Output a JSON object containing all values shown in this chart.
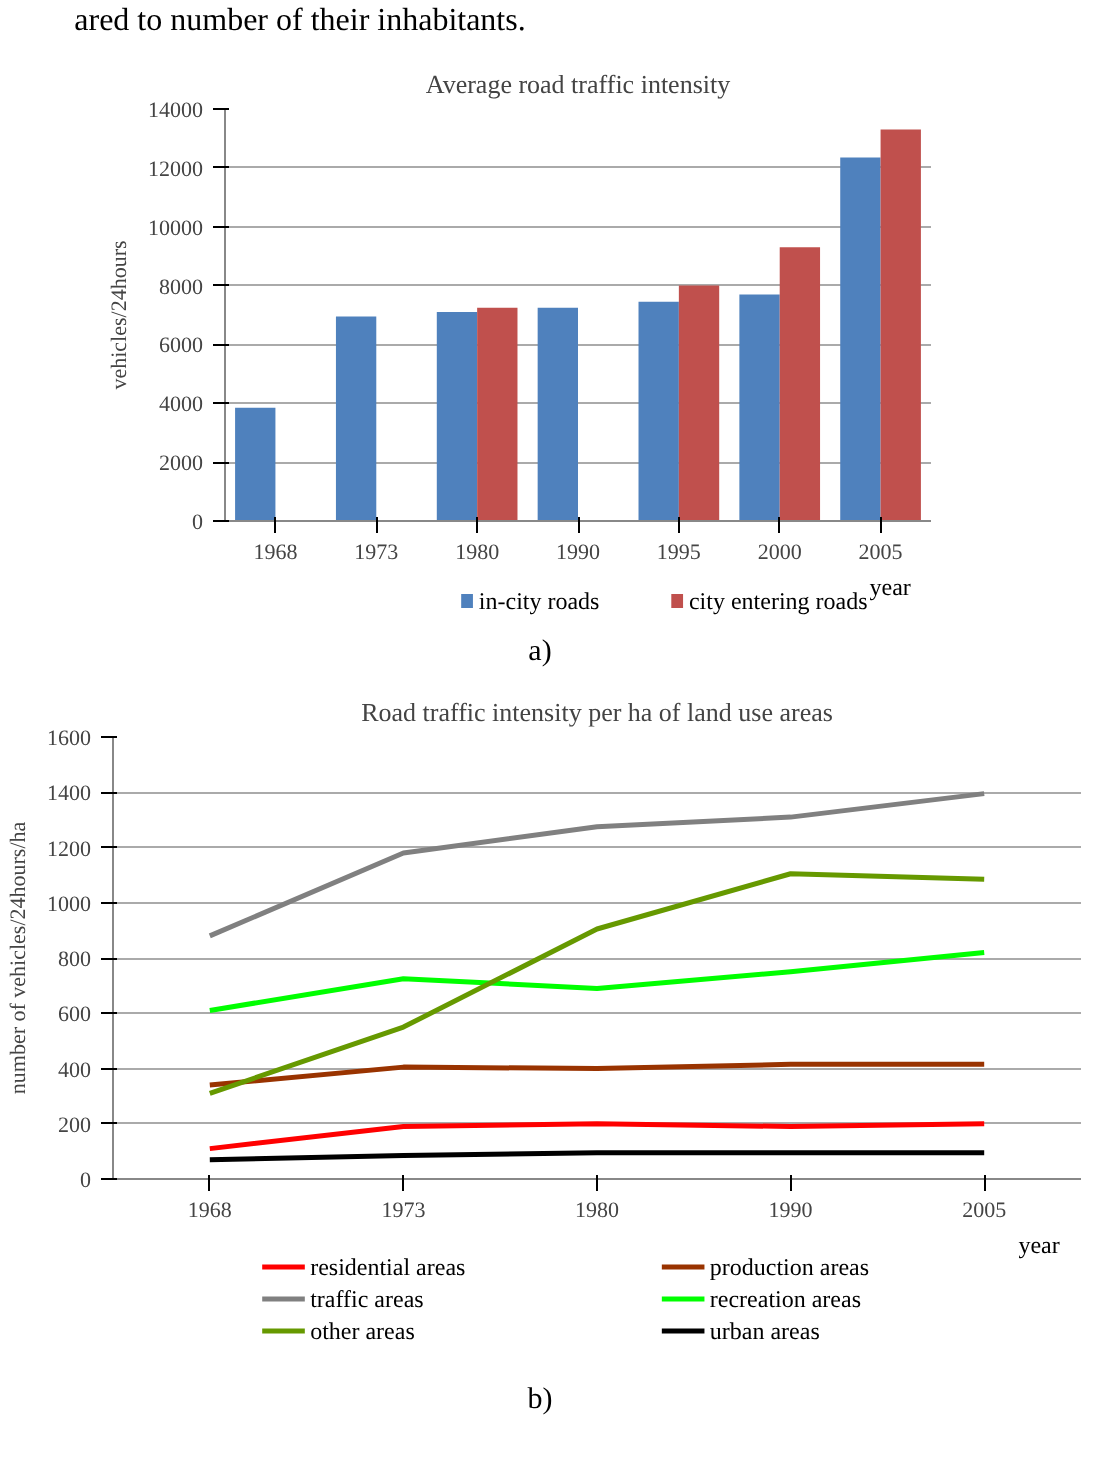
{
  "chart_data": [
    {
      "type": "bar",
      "title": "Average road traffic intensity",
      "xlabel": "year",
      "ylabel": "vehicles/24hours",
      "categories": [
        "1968",
        "1973",
        "1980",
        "1990",
        "1995",
        "2000",
        "2005"
      ],
      "series": [
        {
          "name": "in-city roads",
          "color": "#4f81bd",
          "values": [
            3850,
            6950,
            7100,
            7250,
            7450,
            7700,
            12350
          ]
        },
        {
          "name": "city entering roads",
          "color": "#c0504d",
          "values": [
            null,
            null,
            7250,
            null,
            8000,
            9300,
            13300
          ]
        }
      ],
      "ylim": [
        0,
        14000
      ],
      "yticks": [
        0,
        2000,
        4000,
        6000,
        8000,
        10000,
        12000,
        14000
      ],
      "grid": "y",
      "legend": "bottom",
      "annotations": [
        "ared to number of their inhabitants.",
        "a)"
      ]
    },
    {
      "type": "line",
      "title": "Road traffic intensity per ha of land use areas",
      "xlabel": "year",
      "ylabel": "number of vehicles/24hours/ha",
      "categories": [
        "1968",
        "1973",
        "1980",
        "1990",
        "2005"
      ],
      "series": [
        {
          "name": "residential  areas",
          "color": "#ff0000",
          "values": [
            110,
            190,
            200,
            190,
            200
          ]
        },
        {
          "name": "production areas",
          "color": "#993300",
          "values": [
            340,
            405,
            400,
            415,
            415
          ]
        },
        {
          "name": "traffic areas",
          "color": "#808080",
          "values": [
            880,
            1180,
            1275,
            1310,
            1395
          ]
        },
        {
          "name": "recreation areas",
          "color": "#00ff00",
          "values": [
            610,
            725,
            690,
            750,
            820
          ]
        },
        {
          "name": "other areas",
          "color": "#669900",
          "values": [
            310,
            550,
            905,
            1105,
            1085
          ]
        },
        {
          "name": "urban areas",
          "color": "#000000",
          "values": [
            70,
            85,
            95,
            95,
            95
          ]
        }
      ],
      "ylim": [
        0,
        1600
      ],
      "yticks": [
        0,
        200,
        400,
        600,
        800,
        1000,
        1200,
        1400,
        1600
      ],
      "grid": "y",
      "legend": "bottom",
      "annotations": [
        "b)"
      ]
    }
  ]
}
